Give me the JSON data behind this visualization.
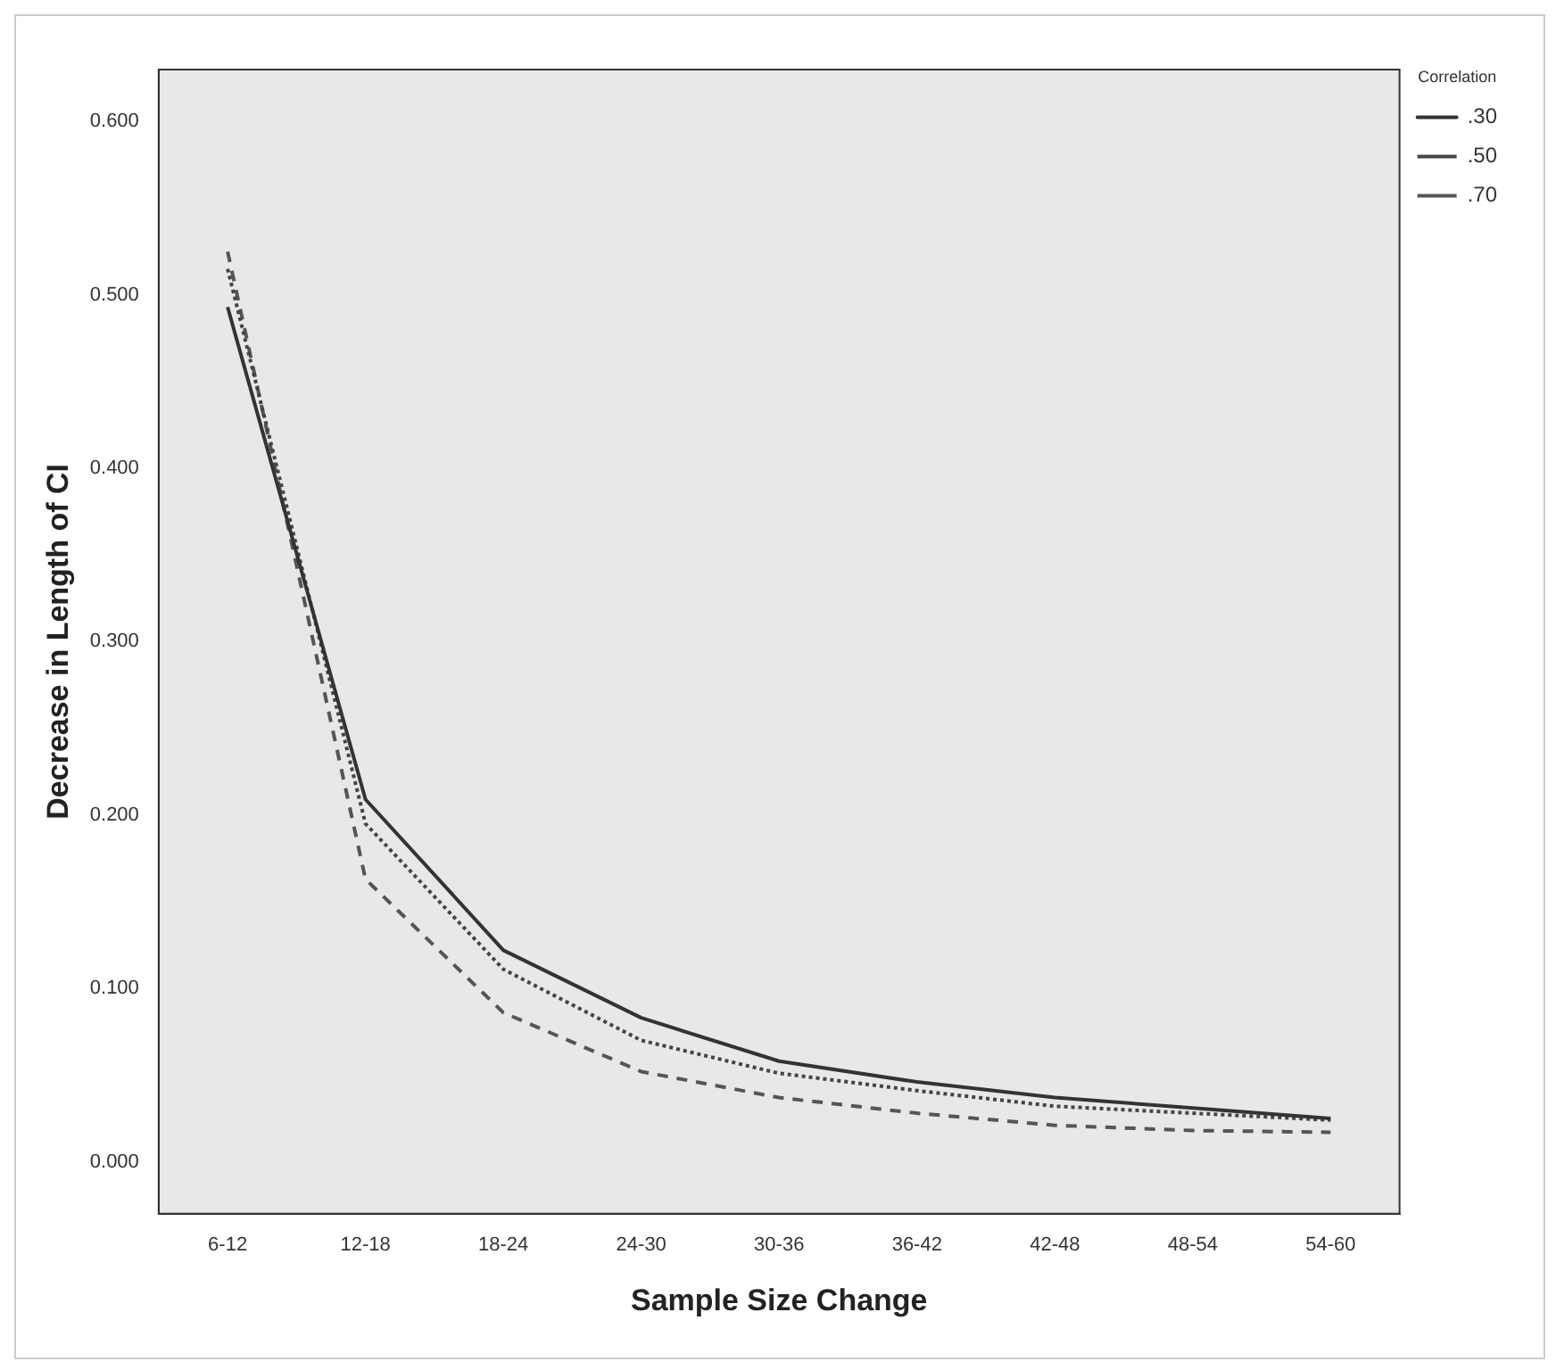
{
  "chart_data": {
    "type": "line",
    "xlabel": "Sample Size Change",
    "ylabel": "Decrease in Length of CI",
    "legend_title": "Correlation",
    "categories": [
      "6-12",
      "12-18",
      "18-24",
      "24-30",
      "30-36",
      "36-42",
      "42-48",
      "48-54",
      "54-60"
    ],
    "series": [
      {
        "name": ".30",
        "color": "#333333",
        "line_style": "solid",
        "values": [
          0.493,
          0.209,
          0.122,
          0.083,
          0.058,
          0.046,
          0.037,
          0.031,
          0.025
        ]
      },
      {
        "name": ".50",
        "color": "#444444",
        "line_style": "dotted",
        "values": [
          0.515,
          0.195,
          0.111,
          0.07,
          0.051,
          0.041,
          0.032,
          0.028,
          0.024
        ]
      },
      {
        "name": ".70",
        "color": "#555555",
        "line_style": "dashed",
        "values": [
          0.525,
          0.163,
          0.086,
          0.052,
          0.037,
          0.028,
          0.021,
          0.018,
          0.017
        ]
      }
    ],
    "ylim": [
      -0.03,
      0.63
    ],
    "yticks": [
      {
        "value": 0,
        "label": "0.000"
      },
      {
        "value": 0.1,
        "label": "0.100"
      },
      {
        "value": 0.2,
        "label": "0.200"
      },
      {
        "value": 0.3,
        "label": "0.300"
      },
      {
        "value": 0.4,
        "label": "0.400"
      },
      {
        "value": 0.5,
        "label": "0.500"
      },
      {
        "value": 0.6,
        "label": "0.600"
      }
    ],
    "grid": false,
    "legend": "top right",
    "marker": "none"
  }
}
